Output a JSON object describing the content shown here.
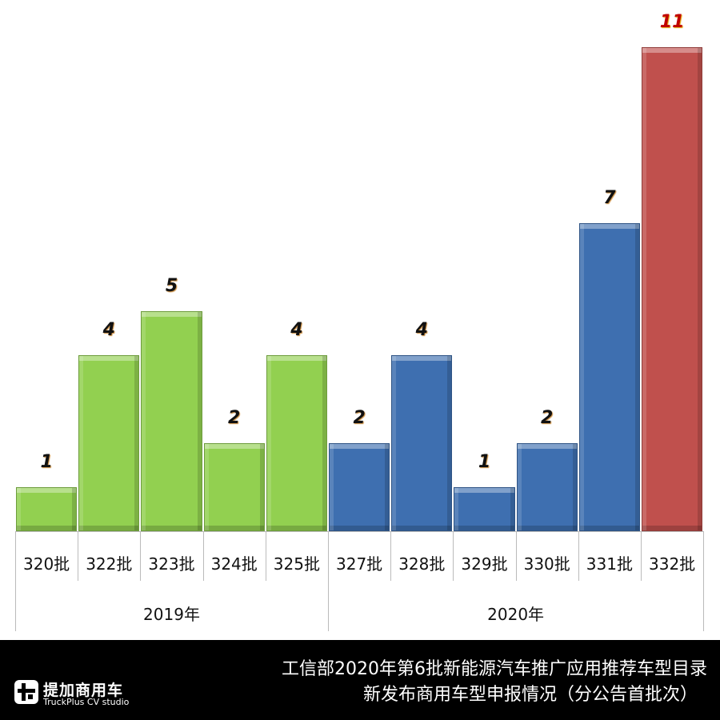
{
  "chart_data": {
    "type": "bar",
    "title": "工信部2020年第6批新能源汽车推广应用推荐车型目录 新发布商用车型申报情况（分公告首批次）",
    "categories": [
      "320批",
      "322批",
      "323批",
      "324批",
      "325批",
      "327批",
      "328批",
      "329批",
      "330批",
      "331批",
      "332批"
    ],
    "values": [
      1,
      4,
      5,
      2,
      4,
      2,
      4,
      1,
      2,
      7,
      11
    ],
    "groups": [
      {
        "label": "2019年",
        "categories": [
          "320批",
          "322批",
          "323批",
          "324批",
          "325批"
        ],
        "color": "#92d050"
      },
      {
        "label": "2020年",
        "categories": [
          "327批",
          "328批",
          "329批",
          "330批",
          "331批"
        ],
        "color": "#3e6fb0"
      },
      {
        "label": "2020年",
        "categories": [
          "332批"
        ],
        "color": "#c0504d",
        "highlight": true
      }
    ],
    "xlabel": "",
    "ylabel": "",
    "ylim": [
      0,
      11
    ],
    "grid": false,
    "legend": "none",
    "data_labels": true
  },
  "axis": {
    "categories": [
      "320批",
      "322批",
      "323批",
      "324批",
      "325批",
      "327批",
      "328批",
      "329批",
      "330批",
      "331批",
      "332批"
    ],
    "group_labels": [
      "2019年",
      "2020年"
    ]
  },
  "labels": [
    "1",
    "4",
    "5",
    "2",
    "4",
    "2",
    "4",
    "1",
    "2",
    "7",
    "11"
  ],
  "footer": {
    "title_line1": "工信部2020年第6批新能源汽车推广应用推荐车型目录",
    "title_line2": "新发布商用车型申报情况（分公告首批次）",
    "logo_cn": "提加商用车",
    "logo_en": "TruckPlus CV studio"
  },
  "colors": {
    "green": "#92d050",
    "blue": "#3e6fb0",
    "red": "#c0504d"
  }
}
